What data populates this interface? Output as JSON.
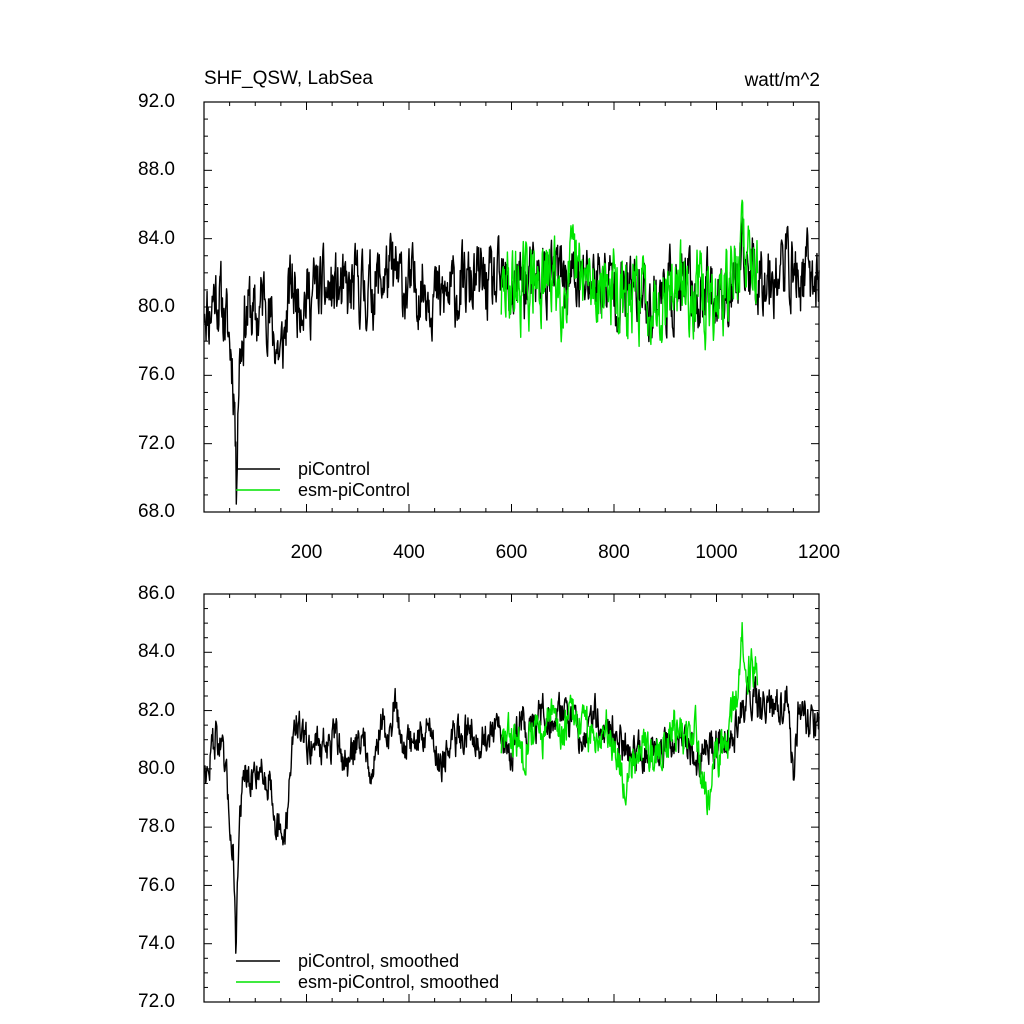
{
  "chart_data": [
    {
      "type": "line",
      "title": "SHF_QSW, LabSea",
      "units": "watt/m^2",
      "xlim": [
        0,
        1200
      ],
      "ylim": [
        68,
        92
      ],
      "x_ticks": [
        200,
        400,
        600,
        800,
        1000,
        1200
      ],
      "x_tick_labels": [
        "200",
        "400",
        "600",
        "800",
        "1000",
        "1200"
      ],
      "y_ticks": [
        68,
        72,
        76,
        80,
        84,
        88,
        92
      ],
      "y_tick_labels": [
        "68.0",
        "72.0",
        "76.0",
        "80.0",
        "84.0",
        "88.0",
        "92.0"
      ],
      "grid": false,
      "legend_position": "bottom-left",
      "series": [
        {
          "name": "piControl",
          "color": "#000000",
          "x_start": 1,
          "x_end": 1200,
          "anchors": [
            [
              1,
              80.5
            ],
            [
              10,
              79.5
            ],
            [
              20,
              81
            ],
            [
              30,
              80.5
            ],
            [
              40,
              79.5
            ],
            [
              50,
              78
            ],
            [
              55,
              77
            ],
            [
              60,
              74.5
            ],
            [
              63,
              69
            ],
            [
              66,
              75
            ],
            [
              70,
              77.5
            ],
            [
              80,
              79.5
            ],
            [
              90,
              80
            ],
            [
              100,
              79
            ],
            [
              110,
              80
            ],
            [
              120,
              81
            ],
            [
              130,
              79
            ],
            [
              140,
              78
            ],
            [
              150,
              77
            ],
            [
              160,
              79
            ],
            [
              170,
              81.5
            ],
            [
              180,
              80.5
            ],
            [
              190,
              81
            ],
            [
              200,
              80.5
            ],
            [
              220,
              81
            ],
            [
              240,
              80.8
            ],
            [
              260,
              81
            ],
            [
              280,
              80.5
            ],
            [
              300,
              81.3
            ],
            [
              320,
              80.8
            ],
            [
              340,
              81.5
            ],
            [
              360,
              82
            ],
            [
              380,
              81.5
            ],
            [
              400,
              81
            ],
            [
              420,
              81.3
            ],
            [
              440,
              81.2
            ],
            [
              460,
              80.3
            ],
            [
              480,
              80.8
            ],
            [
              500,
              81
            ],
            [
              520,
              81.3
            ],
            [
              540,
              81.5
            ],
            [
              560,
              81
            ],
            [
              580,
              81.2
            ],
            [
              600,
              80.8
            ],
            [
              620,
              81.5
            ],
            [
              640,
              81.2
            ],
            [
              660,
              81.8
            ],
            [
              680,
              81.5
            ],
            [
              700,
              82
            ],
            [
              720,
              81.5
            ],
            [
              740,
              81.3
            ],
            [
              760,
              81.8
            ],
            [
              780,
              81.5
            ],
            [
              800,
              81.2
            ],
            [
              820,
              80.8
            ],
            [
              840,
              81
            ],
            [
              860,
              80.5
            ],
            [
              880,
              80.5
            ],
            [
              900,
              81
            ],
            [
              920,
              80.8
            ],
            [
              940,
              81
            ],
            [
              960,
              80.5
            ],
            [
              980,
              80.8
            ],
            [
              1000,
              81
            ],
            [
              1020,
              81
            ],
            [
              1040,
              81.5
            ],
            [
              1060,
              82.5
            ],
            [
              1080,
              82
            ],
            [
              1100,
              82
            ],
            [
              1120,
              82
            ],
            [
              1140,
              82.5
            ],
            [
              1160,
              81.5
            ],
            [
              1180,
              82
            ],
            [
              1200,
              81.5
            ]
          ],
          "noise_amplitude": 2.4,
          "seed": 11
        },
        {
          "name": "esm-piControl",
          "color": "#00e400",
          "x_start": 580,
          "x_end": 1080,
          "anchors": [
            [
              580,
              80.5
            ],
            [
              600,
              81.5
            ],
            [
              620,
              81
            ],
            [
              640,
              81.5
            ],
            [
              660,
              81.2
            ],
            [
              680,
              81.8
            ],
            [
              700,
              81
            ],
            [
              720,
              82
            ],
            [
              740,
              81.5
            ],
            [
              760,
              81
            ],
            [
              780,
              81.5
            ],
            [
              800,
              81
            ],
            [
              820,
              79.8
            ],
            [
              840,
              80.5
            ],
            [
              860,
              80.8
            ],
            [
              880,
              80.5
            ],
            [
              900,
              81
            ],
            [
              920,
              81.2
            ],
            [
              940,
              81
            ],
            [
              960,
              81.2
            ],
            [
              980,
              79.8
            ],
            [
              1000,
              80.5
            ],
            [
              1020,
              81
            ],
            [
              1040,
              82.3
            ],
            [
              1050,
              83.8
            ],
            [
              1060,
              83
            ],
            [
              1080,
              83.2
            ]
          ],
          "noise_amplitude": 2.6,
          "seed": 29
        }
      ]
    },
    {
      "type": "line",
      "xlim": [
        0,
        1200
      ],
      "ylim": [
        72,
        86
      ],
      "x_ticks": [
        200,
        400,
        600,
        800,
        1000,
        1200
      ],
      "y_ticks": [
        72,
        74,
        76,
        78,
        80,
        82,
        84,
        86
      ],
      "y_tick_labels": [
        "72.0",
        "74.0",
        "76.0",
        "78.0",
        "80.0",
        "82.0",
        "84.0",
        "86.0"
      ],
      "grid": false,
      "legend_position": "bottom-left",
      "series": [
        {
          "name": "piControl, smoothed",
          "color": "#000000",
          "x_start": 1,
          "x_end": 1200,
          "anchors": [
            [
              1,
              80.3
            ],
            [
              8,
              79.6
            ],
            [
              15,
              80.8
            ],
            [
              25,
              81.2
            ],
            [
              35,
              80.5
            ],
            [
              45,
              79.3
            ],
            [
              52,
              78
            ],
            [
              58,
              76.8
            ],
            [
              62,
              74
            ],
            [
              66,
              76.5
            ],
            [
              70,
              78.5
            ],
            [
              80,
              79.8
            ],
            [
              90,
              79.2
            ],
            [
              100,
              80
            ],
            [
              110,
              80.2
            ],
            [
              120,
              79.5
            ],
            [
              130,
              79.8
            ],
            [
              140,
              78.3
            ],
            [
              150,
              77.4
            ],
            [
              160,
              78
            ],
            [
              170,
              80.5
            ],
            [
              180,
              81.8
            ],
            [
              190,
              81
            ],
            [
              200,
              80.8
            ],
            [
              220,
              81
            ],
            [
              240,
              80.7
            ],
            [
              260,
              81
            ],
            [
              280,
              80
            ],
            [
              300,
              81.2
            ],
            [
              320,
              80.6
            ],
            [
              330,
              79.8
            ],
            [
              340,
              81.2
            ],
            [
              350,
              81.7
            ],
            [
              360,
              80.6
            ],
            [
              370,
              82.4
            ],
            [
              380,
              81.6
            ],
            [
              390,
              80.8
            ],
            [
              400,
              80.9
            ],
            [
              420,
              81
            ],
            [
              440,
              81.5
            ],
            [
              460,
              80.2
            ],
            [
              480,
              80.7
            ],
            [
              500,
              81.2
            ],
            [
              520,
              81.4
            ],
            [
              540,
              81
            ],
            [
              560,
              81.2
            ],
            [
              580,
              81.1
            ],
            [
              600,
              80.5
            ],
            [
              620,
              81.8
            ],
            [
              640,
              81.2
            ],
            [
              660,
              82
            ],
            [
              680,
              81.6
            ],
            [
              700,
              82.2
            ],
            [
              720,
              81.4
            ],
            [
              740,
              81.2
            ],
            [
              760,
              81.9
            ],
            [
              780,
              81.4
            ],
            [
              800,
              81.2
            ],
            [
              820,
              80.7
            ],
            [
              840,
              80.8
            ],
            [
              860,
              80.6
            ],
            [
              880,
              80.4
            ],
            [
              900,
              81.1
            ],
            [
              920,
              80.7
            ],
            [
              940,
              81
            ],
            [
              960,
              80.3
            ],
            [
              980,
              80.6
            ],
            [
              1000,
              80.9
            ],
            [
              1020,
              81
            ],
            [
              1040,
              81.5
            ],
            [
              1060,
              82.6
            ],
            [
              1080,
              82.3
            ],
            [
              1100,
              81.9
            ],
            [
              1120,
              82.2
            ],
            [
              1140,
              82.6
            ],
            [
              1150,
              79.3
            ],
            [
              1160,
              82
            ],
            [
              1180,
              81.7
            ],
            [
              1200,
              81.2
            ]
          ],
          "noise_amplitude": 0.75,
          "seed": 47
        },
        {
          "name": "esm-piControl, smoothed",
          "color": "#00e400",
          "x_start": 580,
          "x_end": 1080,
          "anchors": [
            [
              580,
              80.8
            ],
            [
              600,
              81.2
            ],
            [
              620,
              80.6
            ],
            [
              640,
              81.5
            ],
            [
              660,
              81
            ],
            [
              680,
              81.8
            ],
            [
              700,
              81.2
            ],
            [
              720,
              82
            ],
            [
              740,
              81.5
            ],
            [
              760,
              81
            ],
            [
              780,
              81.5
            ],
            [
              800,
              81
            ],
            [
              820,
              79.5
            ],
            [
              840,
              80.5
            ],
            [
              860,
              81
            ],
            [
              880,
              80.2
            ],
            [
              900,
              81.2
            ],
            [
              920,
              81.5
            ],
            [
              940,
              81
            ],
            [
              960,
              81.2
            ],
            [
              980,
              79
            ],
            [
              1000,
              80.5
            ],
            [
              1020,
              80.8
            ],
            [
              1040,
              82.5
            ],
            [
              1050,
              84.5
            ],
            [
              1060,
              83.2
            ],
            [
              1080,
              83.5
            ]
          ],
          "noise_amplitude": 0.8,
          "seed": 83
        }
      ]
    }
  ]
}
